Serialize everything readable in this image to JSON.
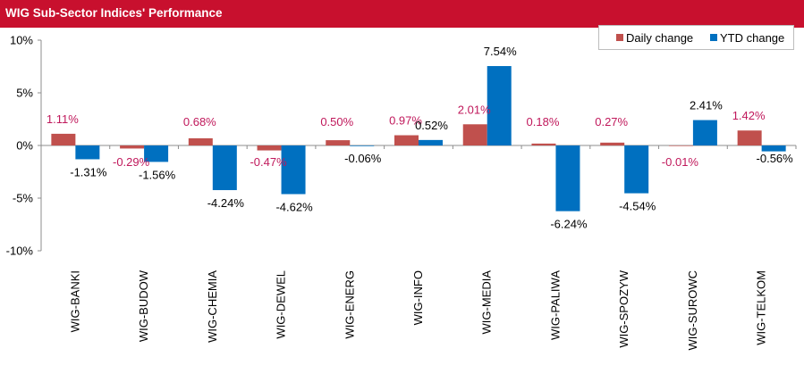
{
  "title": "WIG Sub-Sector Indices' Performance",
  "colors": {
    "title_bg": "#c8102e",
    "daily": "#c0504d",
    "ytd": "#0070c0",
    "daily_label": "#c0185b",
    "ytd_label": "#000000"
  },
  "legend": {
    "daily_label": "Daily change",
    "ytd_label": "YTD change",
    "placement": "top-right"
  },
  "chart_data": {
    "type": "bar",
    "title": "WIG Sub-Sector Indices' Performance",
    "categories": [
      "WIG-BANKI",
      "WIG-BUDOW",
      "WIG-CHEMIA",
      "WIG-DEWEL",
      "WIG-ENERG",
      "WIG-INFO",
      "WIG-MEDIA",
      "WIG-PALIWA",
      "WIG-SPOZYW",
      "WIG-SUROWC",
      "WIG-TELKOM"
    ],
    "series": [
      {
        "name": "Daily change",
        "values": [
          1.11,
          -0.29,
          0.68,
          -0.47,
          0.5,
          0.97,
          2.01,
          0.18,
          0.27,
          -0.01,
          1.42
        ],
        "labels": [
          "1.11%",
          "-0.29%",
          "0.68%",
          "-0.47%",
          "0.50%",
          "0.97%",
          "2.01%",
          "0.18%",
          "0.27%",
          "-0.01%",
          "1.42%"
        ]
      },
      {
        "name": "YTD change",
        "values": [
          -1.31,
          -1.56,
          -4.24,
          -4.62,
          -0.06,
          0.52,
          7.54,
          -6.24,
          -4.54,
          2.41,
          -0.56
        ],
        "labels": [
          "-1.31%",
          "-1.56%",
          "-4.24%",
          "-4.62%",
          "-0.06%",
          "0.52%",
          "7.54%",
          "-6.24%",
          "-4.54%",
          "2.41%",
          "-0.56%"
        ]
      }
    ],
    "yticks": [
      10,
      5,
      0,
      -5,
      -10
    ],
    "ytick_labels": [
      "10%",
      "5%",
      "0%",
      "-5%",
      "-10%"
    ],
    "ylim": [
      -10,
      10
    ],
    "grid": false,
    "xlabel": "",
    "ylabel": ""
  }
}
